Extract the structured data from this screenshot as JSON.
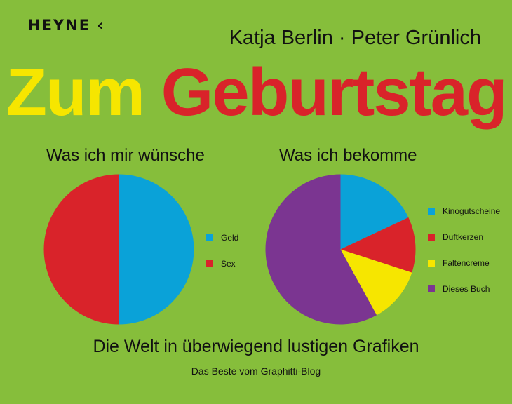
{
  "cover": {
    "publisher": "HEYNE ‹",
    "authors": "Katja Berlin · Peter Grünlich",
    "title_part1": "Zum",
    "title_part2": "Geburtstag",
    "subtitle": "Die Welt in überwiegend lustigen Grafiken",
    "tagline": "Das Beste vom Graphitti-Blog"
  },
  "chart_data": [
    {
      "type": "pie",
      "title": "Was ich mir wünsche",
      "categories": [
        "Geld",
        "Sex"
      ],
      "values": [
        50,
        50
      ],
      "colors": [
        "#0aa2d8",
        "#d9232a"
      ],
      "legend_position": "right"
    },
    {
      "type": "pie",
      "title": "Was ich bekomme",
      "categories": [
        "Kinogutscheine",
        "Duftkerzen",
        "Faltencreme",
        "Dieses Buch"
      ],
      "values": [
        18,
        12,
        12,
        58
      ],
      "colors": [
        "#0aa2d8",
        "#d9232a",
        "#f6e600",
        "#7b3591"
      ],
      "legend_position": "right"
    }
  ]
}
